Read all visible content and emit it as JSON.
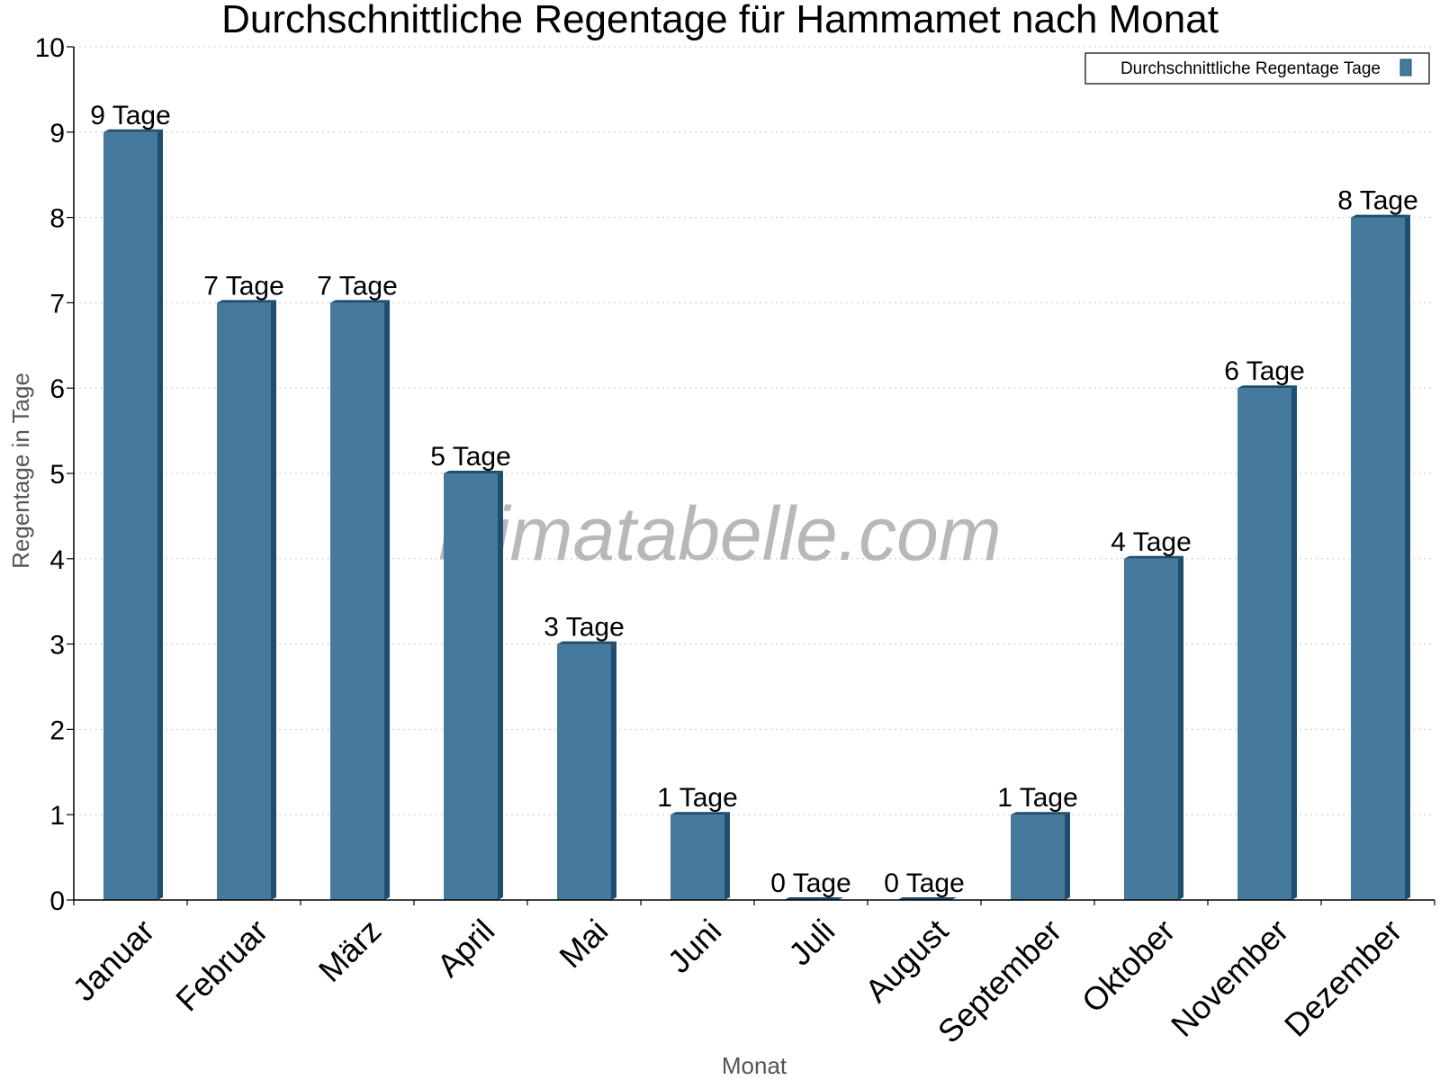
{
  "chart_data": {
    "type": "bar",
    "title": "Durchschnittliche Regentage für Hammamet nach Monat",
    "xlabel": "Monat",
    "ylabel": "Regentage in Tage",
    "ylim": [
      0,
      10
    ],
    "yticks": [
      0,
      1,
      2,
      3,
      4,
      5,
      6,
      7,
      8,
      9,
      10
    ],
    "grid": true,
    "legend_position": "top-right",
    "categories": [
      "Januar",
      "Februar",
      "März",
      "April",
      "Mai",
      "Juni",
      "Juli",
      "August",
      "September",
      "Oktober",
      "November",
      "Dezember"
    ],
    "series": [
      {
        "name": "Durchschnittliche Regentage Tage",
        "values": [
          9,
          7,
          7,
          5,
          3,
          1,
          0,
          0,
          1,
          4,
          6,
          8
        ],
        "labels": [
          "9 Tage",
          "7 Tage",
          "7 Tage",
          "5 Tage",
          "3 Tage",
          "1 Tage",
          "0 Tage",
          "0 Tage",
          "1 Tage",
          "4 Tage",
          "6 Tage",
          "8 Tage"
        ],
        "color": "#457a9c",
        "shade_color": "#1e4d6e"
      }
    ],
    "watermark": "klimatabelle.com"
  }
}
